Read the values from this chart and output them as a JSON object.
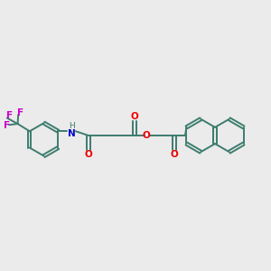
{
  "bg_color": "#ebebeb",
  "bond_color": "#3d7d6e",
  "o_color": "#ee0000",
  "n_color": "#0000cc",
  "f_color": "#cc00cc",
  "figsize": [
    3.0,
    3.0
  ],
  "dpi": 100,
  "xlim": [
    0,
    10
  ],
  "ylim": [
    2,
    8
  ],
  "ring_r": 0.62,
  "bond_lw": 1.4,
  "font_size": 7.5
}
